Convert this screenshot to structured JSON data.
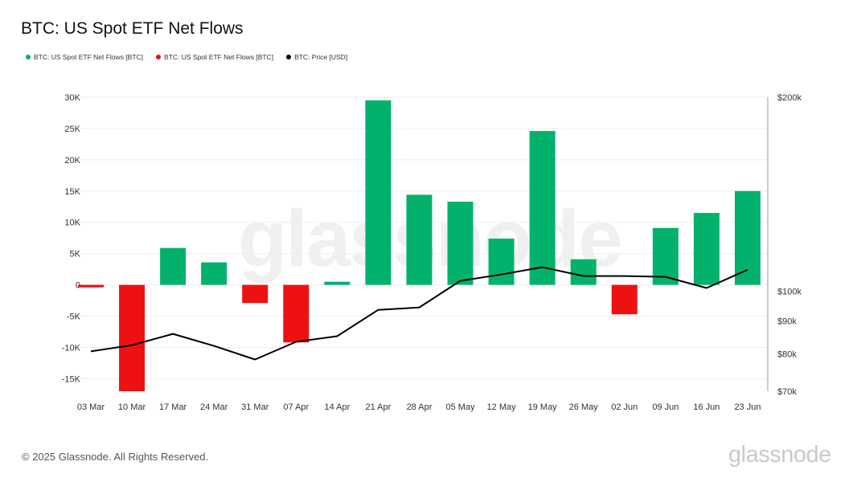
{
  "title": "BTC: US Spot ETF Net Flows",
  "legend": [
    {
      "label": "BTC: US Spot ETF Net Flows [BTC]",
      "color": "#02b26c"
    },
    {
      "label": "BTC: US Spot ETF Net Flows [BTC]",
      "color": "#ee1111"
    },
    {
      "label": "BTC: Price [USD]",
      "color": "#000000"
    }
  ],
  "watermark": "glassnode",
  "footer": "© 2025 Glassnode. All Rights Reserved.",
  "brand": "glassnode",
  "chart_data": {
    "type": "bar",
    "title": "BTC: US Spot ETF Net Flows",
    "categories": [
      "03 Mar",
      "10 Mar",
      "17 Mar",
      "24 Mar",
      "31 Mar",
      "07 Apr",
      "14 Apr",
      "21 Apr",
      "28 Apr",
      "05 May",
      "12 May",
      "19 May",
      "26 May",
      "02 Jun",
      "09 Jun",
      "16 Jun",
      "23 Jun"
    ],
    "series": [
      {
        "name": "BTC: US Spot ETF Net Flows [BTC]",
        "kind": "bar",
        "axis": "left",
        "positive_color": "#02b26c",
        "negative_color": "#ee1111",
        "values": [
          -400,
          -17000,
          5900,
          3600,
          -2900,
          -9200,
          500,
          29500,
          14400,
          13300,
          7400,
          24600,
          4100,
          -4700,
          9100,
          11500,
          15000
        ]
      },
      {
        "name": "BTC: Price [USD]",
        "kind": "line",
        "axis": "right",
        "color": "#000000",
        "values": [
          80700,
          82500,
          85900,
          82300,
          78400,
          83500,
          85200,
          93600,
          94400,
          103800,
          106200,
          109000,
          105600,
          105600,
          105300,
          101200,
          108000
        ]
      }
    ],
    "left_axis": {
      "ylim": [
        -17000,
        30000
      ],
      "ticks": [
        -15000,
        -10000,
        -5000,
        0,
        5000,
        10000,
        15000,
        20000,
        25000,
        30000
      ],
      "tick_labels": [
        "-15K",
        "-10K",
        "-5K",
        "0",
        "5K",
        "10K",
        "15K",
        "20K",
        "25K",
        "30K"
      ]
    },
    "right_axis": {
      "scale": "log",
      "ylim": [
        70000,
        200000
      ],
      "ticks": [
        70000,
        80000,
        90000,
        100000,
        200000
      ],
      "tick_labels": [
        "$70k",
        "$80k",
        "$90k",
        "$100k",
        "$200k"
      ]
    },
    "grid": true,
    "legend_position": "top-left"
  }
}
